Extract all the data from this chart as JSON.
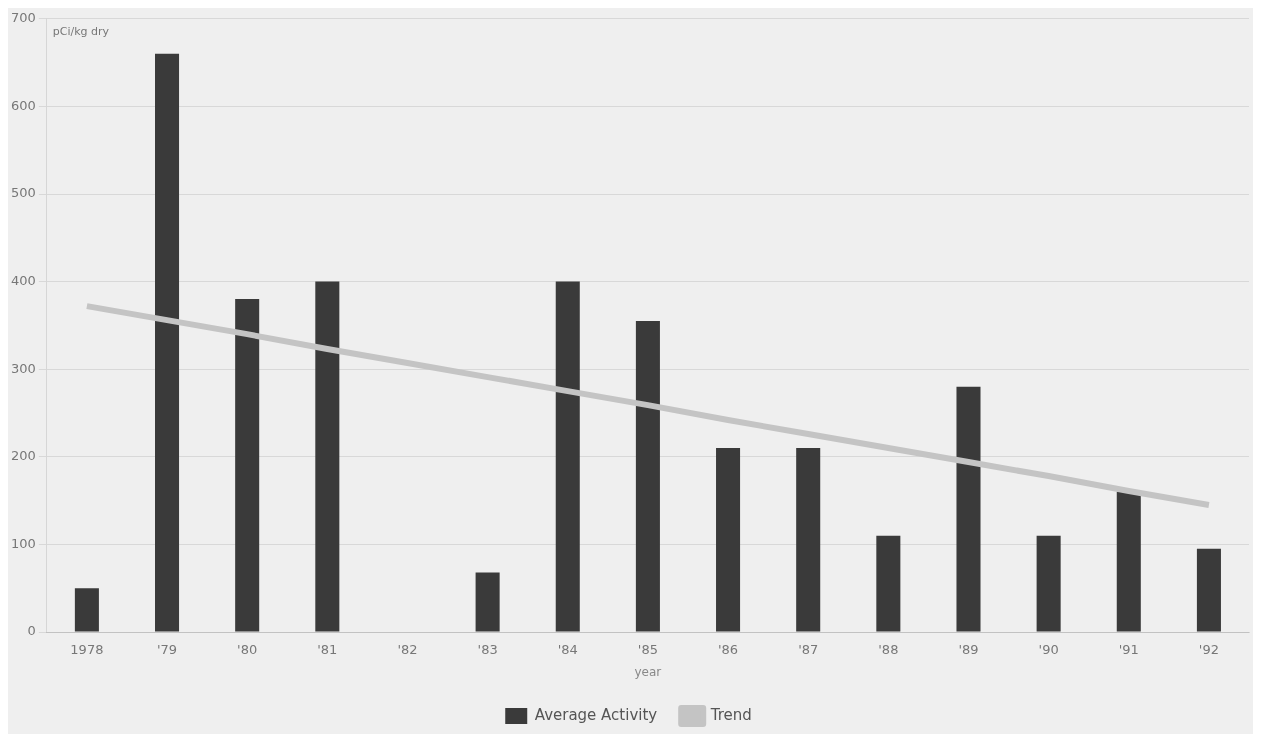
{
  "chart_data": {
    "type": "bar",
    "xlabel": "year",
    "ylabel": "pCi/kg dry",
    "categories": [
      "1978",
      "'79",
      "'80",
      "'81",
      "'82",
      "'83",
      "'84",
      "'85",
      "'86",
      "'87",
      "'88",
      "'89",
      "'90",
      "'91",
      "'92"
    ],
    "series": [
      {
        "name": "Average Activity",
        "color": "#3a3a3a",
        "values": [
          50,
          660,
          380,
          400,
          null,
          68,
          400,
          355,
          210,
          210,
          110,
          280,
          110,
          160,
          95
        ]
      },
      {
        "name": "Trend",
        "type": "line",
        "color": "#c4c4c4",
        "values": [
          372,
          356,
          340,
          323,
          307,
          291,
          275,
          259,
          242,
          226,
          210,
          194,
          178,
          161,
          145
        ]
      }
    ],
    "ylim": [
      0,
      700
    ],
    "yticks": [
      0,
      100,
      200,
      300,
      400,
      500,
      600,
      700
    ],
    "grid": "y",
    "legend": "bottom",
    "marker": "none"
  }
}
